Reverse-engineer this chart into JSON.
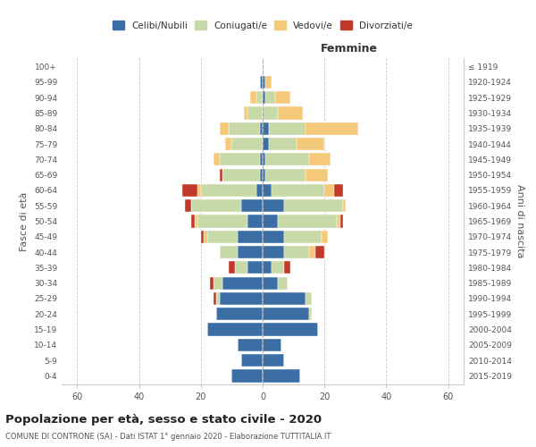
{
  "age_groups": [
    "0-4",
    "5-9",
    "10-14",
    "15-19",
    "20-24",
    "25-29",
    "30-34",
    "35-39",
    "40-44",
    "45-49",
    "50-54",
    "55-59",
    "60-64",
    "65-69",
    "70-74",
    "75-79",
    "80-84",
    "85-89",
    "90-94",
    "95-99",
    "100+"
  ],
  "birth_years": [
    "2015-2019",
    "2010-2014",
    "2005-2009",
    "2000-2004",
    "1995-1999",
    "1990-1994",
    "1985-1989",
    "1980-1984",
    "1975-1979",
    "1970-1974",
    "1965-1969",
    "1960-1964",
    "1955-1959",
    "1950-1954",
    "1945-1949",
    "1940-1944",
    "1935-1939",
    "1930-1934",
    "1925-1929",
    "1920-1924",
    "≤ 1919"
  ],
  "male_celibi": [
    10,
    7,
    8,
    18,
    15,
    14,
    13,
    5,
    8,
    8,
    5,
    7,
    2,
    1,
    1,
    0,
    1,
    0,
    0,
    1,
    0
  ],
  "male_coniugati": [
    0,
    0,
    0,
    0,
    0,
    1,
    3,
    4,
    6,
    10,
    16,
    16,
    18,
    12,
    13,
    10,
    10,
    5,
    2,
    0,
    0
  ],
  "male_vedovi": [
    0,
    0,
    0,
    0,
    0,
    0,
    0,
    0,
    0,
    1,
    1,
    0,
    1,
    0,
    2,
    2,
    3,
    1,
    2,
    0,
    0
  ],
  "male_divorziati": [
    0,
    0,
    0,
    0,
    0,
    1,
    1,
    2,
    0,
    1,
    1,
    2,
    5,
    1,
    0,
    0,
    0,
    0,
    0,
    0,
    0
  ],
  "female_celibi": [
    12,
    7,
    6,
    18,
    15,
    14,
    5,
    3,
    7,
    7,
    5,
    7,
    3,
    1,
    1,
    2,
    2,
    0,
    1,
    1,
    0
  ],
  "female_coniugati": [
    0,
    0,
    0,
    0,
    1,
    2,
    3,
    4,
    8,
    12,
    19,
    19,
    17,
    13,
    14,
    9,
    12,
    5,
    3,
    0,
    0
  ],
  "female_vedovi": [
    0,
    0,
    0,
    0,
    0,
    0,
    0,
    0,
    2,
    2,
    1,
    1,
    3,
    7,
    7,
    9,
    17,
    8,
    5,
    2,
    0
  ],
  "female_divorziati": [
    0,
    0,
    0,
    0,
    0,
    0,
    0,
    2,
    3,
    0,
    1,
    0,
    3,
    0,
    0,
    0,
    0,
    0,
    0,
    0,
    0
  ],
  "color_celibi": "#3B6EA5",
  "color_coniugati": "#C8D9A8",
  "color_vedovi": "#F5C97A",
  "color_divorziati": "#C0392B",
  "xlim": 65,
  "title": "Popolazione per età, sesso e stato civile - 2020",
  "subtitle": "COMUNE DI CONTRONE (SA) - Dati ISTAT 1° gennaio 2020 - Elaborazione TUTTITALIA.IT",
  "ylabel_left": "Fasce di età",
  "ylabel_right": "Anni di nascita",
  "xlabel_femmine": "Femmine",
  "bg_color": "#ffffff",
  "grid_color": "#cccccc",
  "bar_height": 0.82
}
